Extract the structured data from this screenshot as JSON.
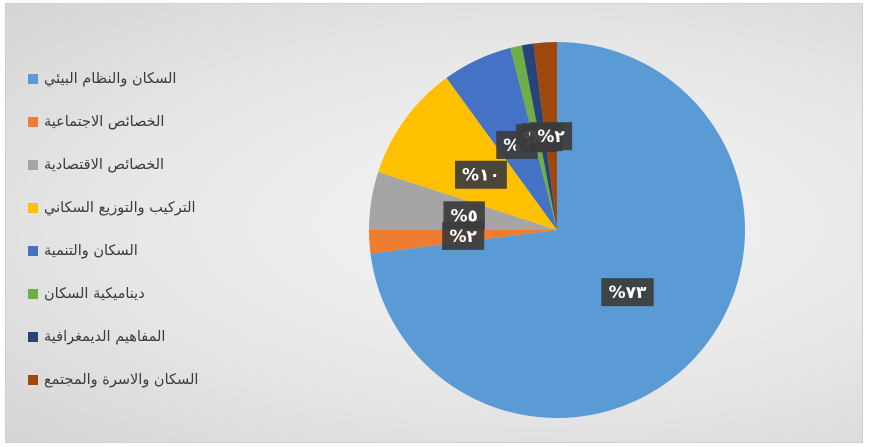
{
  "chart_data": {
    "type": "pie",
    "categories": [
      "السكان والنظام البيئي",
      "الخصائص الاجتماعية",
      "الخصائص الاقتصادية",
      "التركيب والتوزيع السكاني",
      "السكان والتنمية",
      "ديناميكية السكان",
      "المفاهيم الديمغرافية",
      "السكان والاسرة والمجتمع"
    ],
    "values": [
      73,
      2,
      5,
      10,
      6,
      1,
      1,
      2
    ],
    "data_labels": [
      "%٧٣",
      "%٢",
      "%٥",
      "%١٠",
      "%٦",
      "%١",
      "%١",
      "%٢"
    ],
    "colors": [
      "#5B9BD5",
      "#ED7D31",
      "#A5A5A5",
      "#FFC000",
      "#4472C4",
      "#70AD47",
      "#264478",
      "#9E480E"
    ],
    "legend_position": "left",
    "direction": "clockwise",
    "start": "top"
  }
}
